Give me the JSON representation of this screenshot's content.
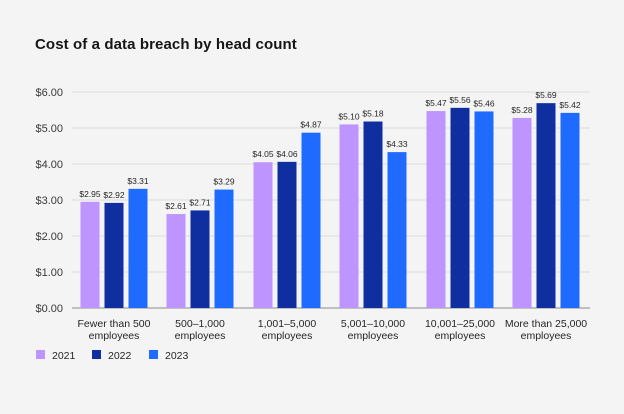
{
  "chart_data": {
    "type": "bar",
    "title": "Cost of a data breach by head count",
    "xlabel": "",
    "ylabel": "",
    "ylim": [
      0,
      6
    ],
    "yticks": [
      "$0.00",
      "$1.00",
      "$2.00",
      "$3.00",
      "$4.00",
      "$5.00",
      "$6.00"
    ],
    "categories": [
      [
        "Fewer than 500",
        "employees"
      ],
      [
        "500–1,000",
        "employees"
      ],
      [
        "1,001–5,000",
        "employees"
      ],
      [
        "5,001–10,000",
        "employees"
      ],
      [
        "10,001–25,000",
        "employees"
      ],
      [
        "More than 25,000",
        "employees"
      ]
    ],
    "series": [
      {
        "name": "2021",
        "color": "#be95ff",
        "values": [
          2.95,
          2.61,
          4.05,
          5.1,
          5.47,
          5.28
        ],
        "labels": [
          "$2.95",
          "$2.61",
          "$4.05",
          "$5.10",
          "$5.47",
          "$5.28"
        ]
      },
      {
        "name": "2022",
        "color": "#0f2ea0",
        "values": [
          2.92,
          2.71,
          4.06,
          5.18,
          5.56,
          5.69
        ],
        "labels": [
          "$2.92",
          "$2.71",
          "$4.06",
          "$5.18",
          "$5.56",
          "$5.69"
        ]
      },
      {
        "name": "2023",
        "color": "#1f6bff",
        "values": [
          3.31,
          3.29,
          4.87,
          4.33,
          5.46,
          5.42
        ],
        "labels": [
          "$3.31",
          "$3.29",
          "$4.87",
          "$4.33",
          "$5.46",
          "$5.42"
        ]
      }
    ],
    "legend": "bottom-left",
    "grid": true
  }
}
